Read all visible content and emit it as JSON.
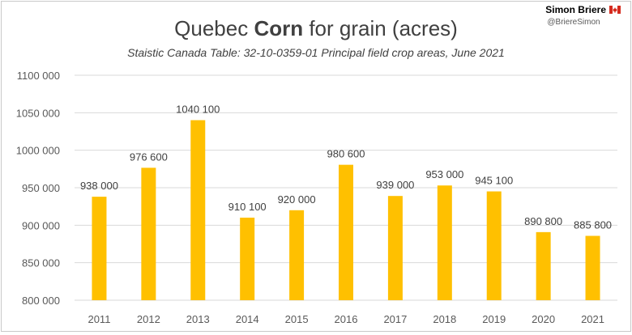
{
  "header": {
    "title_pre": "Quebec ",
    "title_bold": "Corn",
    "title_post": " for grain (acres)",
    "subtitle": "Staistic Canada Table: 32-10-0359-01 Principal field crop areas, June 2021",
    "author_name": "Simon Briere",
    "author_handle": "@BriereSimon",
    "flag_icon": "canada-flag-icon"
  },
  "colors": {
    "bar": "#FFC000",
    "grid": "#d9d9d9",
    "axis_text": "#595959",
    "title": "#404040"
  },
  "chart_data": {
    "type": "bar",
    "title": "Quebec Corn for grain (acres)",
    "subtitle": "Staistic Canada Table: 32-10-0359-01 Principal field crop areas, June 2021",
    "categories": [
      "2011",
      "2012",
      "2013",
      "2014",
      "2015",
      "2016",
      "2017",
      "2018",
      "2019",
      "2020",
      "2021"
    ],
    "values": [
      938000,
      976600,
      1040100,
      910100,
      920000,
      980600,
      939000,
      953000,
      945100,
      890800,
      885800
    ],
    "value_labels": [
      "938 000",
      "976 600",
      "1040 100",
      "910 100",
      "920 000",
      "980 600",
      "939 000",
      "953 000",
      "945 100",
      "890 800",
      "885 800"
    ],
    "ylim": [
      800000,
      1100000
    ],
    "yticks": [
      800000,
      850000,
      900000,
      950000,
      1000000,
      1050000,
      1100000
    ],
    "ytick_labels": [
      "800 000",
      "850 000",
      "900 000",
      "950 000",
      "1000 000",
      "1050 000",
      "1100 000"
    ],
    "xlabel": "",
    "ylabel": "",
    "grid": true,
    "legend": "none"
  }
}
